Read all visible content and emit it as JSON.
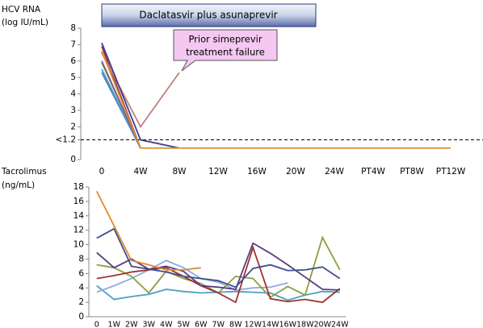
{
  "chart_data": [
    {
      "type": "line",
      "ylabel": [
        "HCV RNA",
        "(log IU/mL)"
      ],
      "annotations": {
        "banner": "Daclatasvir plus asunaprevir",
        "callout": [
          "Prior simeprevir",
          "treatment failure"
        ]
      },
      "categories": [
        "0",
        "4W",
        "8W",
        "12W",
        "16W",
        "20W",
        "24W",
        "PT4W",
        "PT8W",
        "PT12W"
      ],
      "ylim": [
        0,
        8
      ],
      "yticks": [
        0,
        {
          "value": 1.2,
          "label": "<1.2"
        },
        2,
        3,
        4,
        5,
        6,
        7,
        8
      ],
      "threshold": 1.2,
      "series": [
        {
          "color": "#4a7fc1",
          "values": [
            5.3,
            0.7,
            null,
            null,
            null,
            null,
            null,
            null,
            null,
            null
          ]
        },
        {
          "color": "#8aa040",
          "values": [
            5.9,
            0.7,
            null,
            null,
            null,
            null,
            null,
            null,
            null,
            null
          ]
        },
        {
          "color": "#4aa0c0",
          "values": [
            5.5,
            0.7,
            null,
            null,
            null,
            null,
            null,
            null,
            null,
            null
          ]
        },
        {
          "color": "#7a5aa0",
          "values": [
            6.0,
            0.7,
            null,
            null,
            null,
            null,
            null,
            null,
            null,
            null
          ]
        },
        {
          "color": "#a03030",
          "values": [
            6.9,
            0.7,
            null,
            null,
            null,
            null,
            null,
            null,
            null,
            null
          ]
        },
        {
          "color": "#c08080",
          "values": [
            6.5,
            2.0,
            5.3,
            null,
            null,
            null,
            null,
            null,
            null,
            null
          ]
        },
        {
          "color": "#3b3f8c",
          "values": [
            7.1,
            1.2,
            0.7,
            null,
            null,
            null,
            null,
            null,
            null,
            null
          ]
        },
        {
          "color": "#e08a30",
          "values": [
            6.6,
            0.7,
            0.7,
            0.7,
            0.7,
            0.7,
            0.7,
            0.7,
            0.7,
            0.7
          ]
        }
      ]
    },
    {
      "type": "line",
      "ylabel": [
        "Tacrolimus",
        "(ng/mL)"
      ],
      "categories": [
        "0",
        "1W",
        "2W",
        "3W",
        "4W",
        "5W",
        "6W",
        "7W",
        "8W",
        "12W",
        "14W",
        "16W",
        "18W",
        "20W",
        "24W"
      ],
      "ylim": [
        0,
        18
      ],
      "yticks": [
        0,
        2,
        4,
        6,
        8,
        10,
        12,
        14,
        16,
        18
      ],
      "series": [
        {
          "color": "#4aa0c0",
          "values": [
            4.3,
            2.4,
            2.8,
            3.1,
            3.8,
            3.5,
            3.3,
            3.4,
            3.5,
            3.4,
            3.3,
            2.3,
            3.0,
            3.5,
            3.4
          ]
        },
        {
          "color": "#8fa8e0",
          "values": [
            3.4,
            4.3,
            5.3,
            6.5,
            7.8,
            6.8,
            5.3,
            4.8,
            3.7,
            4.0,
            4.1,
            4.7,
            null,
            null,
            null
          ]
        },
        {
          "color": "#8aa040",
          "values": [
            7.2,
            6.8,
            5.6,
            3.3,
            6.3,
            5.3,
            4.6,
            3.3,
            5.6,
            5.3,
            2.7,
            4.2,
            3.0,
            11.0,
            6.5
          ]
        },
        {
          "color": "#a03030",
          "values": [
            5.3,
            5.7,
            6.2,
            6.5,
            6.8,
            5.6,
            4.3,
            3.3,
            2.0,
            9.6,
            2.5,
            2.1,
            2.4,
            2.0,
            3.9
          ]
        },
        {
          "color": "#5a3a80",
          "values": [
            8.9,
            6.8,
            8.0,
            6.6,
            7.0,
            6.3,
            4.3,
            4.1,
            3.8,
            10.2,
            8.8,
            7.2,
            5.5,
            3.8,
            3.7
          ]
        },
        {
          "color": "#3b4f8c",
          "values": [
            10.9,
            12.2,
            7.0,
            6.6,
            6.2,
            5.6,
            5.3,
            5.0,
            4.1,
            6.7,
            7.2,
            6.4,
            6.5,
            6.9,
            5.3
          ]
        },
        {
          "color": "#e08a30",
          "values": [
            17.4,
            12.6,
            7.8,
            7.2,
            6.5,
            6.5,
            6.8,
            null,
            null,
            null,
            null,
            null,
            null,
            null,
            null
          ]
        }
      ]
    }
  ]
}
